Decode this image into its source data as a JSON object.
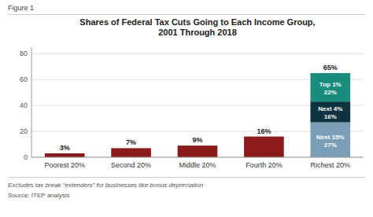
{
  "chart_data": {
    "type": "bar",
    "stacked": true,
    "data_labels": true,
    "grid": true,
    "figure_label": "Figure 1",
    "title": "Shares of Federal Tax Cuts Going to Each Income Group,\n2001 Through 2018",
    "categories": [
      "Poorest 20%",
      "Second 20%",
      "Middle 20%",
      "Fourth 20%",
      "Richest 20%"
    ],
    "series": [
      {
        "color": "#8B1A1A",
        "values": [
          3,
          7,
          9,
          16,
          null
        ],
        "value_labels": [
          "3%",
          "7%",
          "9%",
          "16%",
          null
        ]
      },
      {
        "name": "Next 15%",
        "color": "#7A9EB5",
        "values": [
          null,
          null,
          null,
          null,
          27
        ],
        "value_labels": [
          null,
          null,
          null,
          null,
          "27%"
        ]
      },
      {
        "name": "Next 4%",
        "color": "#0D3340",
        "values": [
          null,
          null,
          null,
          null,
          16
        ],
        "value_labels": [
          null,
          null,
          null,
          null,
          "16%"
        ]
      },
      {
        "name": "Top 1%",
        "color": "#1A8C7E",
        "values": [
          null,
          null,
          null,
          null,
          22
        ],
        "value_labels": [
          null,
          null,
          null,
          null,
          "22%"
        ]
      }
    ],
    "totals": [
      null,
      null,
      null,
      null,
      65
    ],
    "total_labels": [
      null,
      null,
      null,
      null,
      "65%"
    ],
    "ylim": [
      0,
      85
    ],
    "yticks": [
      0,
      20,
      40,
      60,
      80
    ],
    "footnotes": [
      "Excludes tax break “extenders” for businesses like bonus depreciation",
      "Source: ITEP analysis"
    ]
  }
}
